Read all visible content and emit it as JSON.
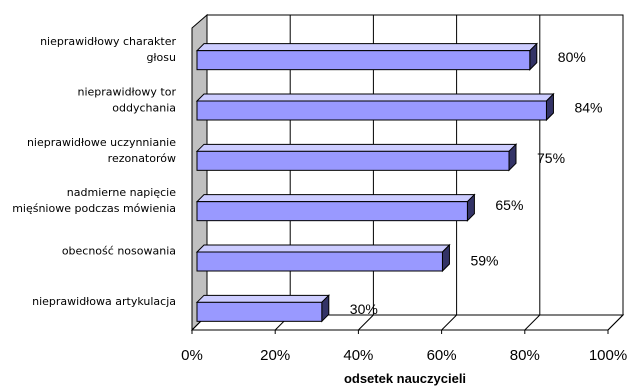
{
  "chart_data": {
    "type": "bar",
    "orientation": "horizontal",
    "categories": [
      [
        "nieprawidłowy charakter",
        "głosu"
      ],
      [
        "nieprawidłowy tor",
        "oddychania"
      ],
      [
        "nieprawidłowe uczynnianie",
        "rezonatorów"
      ],
      [
        "nadmierne napięcie",
        "mięśniowe podczas mówienia"
      ],
      [
        "obecność nosowania"
      ],
      [
        "nieprawidłowa artykulacja"
      ]
    ],
    "values": [
      80,
      84,
      75,
      65,
      59,
      30
    ],
    "value_labels": [
      "80%",
      "84%",
      "75%",
      "65%",
      "59%",
      "30%"
    ],
    "xlim": [
      0,
      100
    ],
    "xticks": [
      "0%",
      "20%",
      "40%",
      "60%",
      "80%",
      "100%"
    ],
    "xlabel": "odsetek nauczycieli",
    "ylabel": "",
    "title": "",
    "grid": "vertical",
    "legend": "none",
    "colors": {
      "bar_front": "#9999ff",
      "bar_top": "#ccccff",
      "bar_side": "#333366",
      "wall": "#c0c0c0",
      "grid": "#000000"
    }
  }
}
